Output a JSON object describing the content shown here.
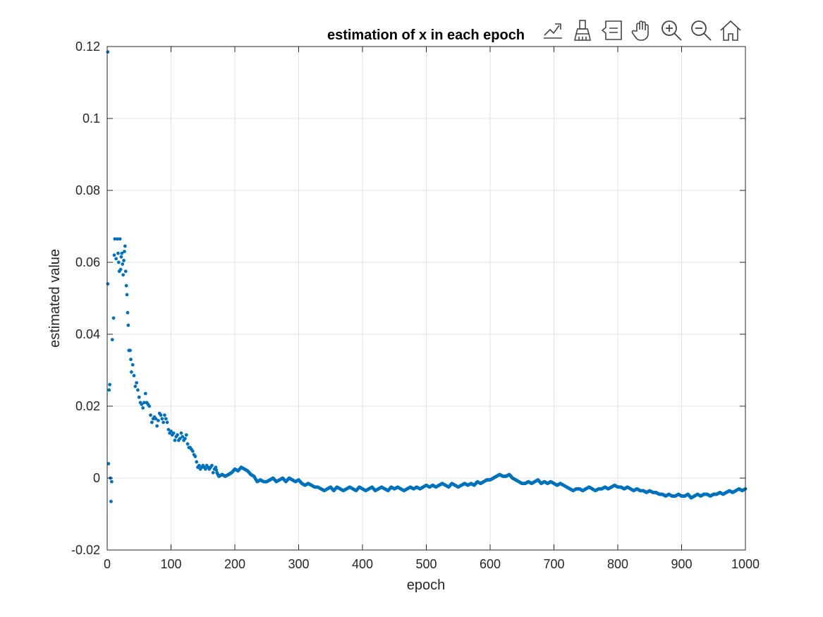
{
  "toolbar": {
    "icons": [
      "export-icon",
      "brush-icon",
      "datatip-icon",
      "pan-icon",
      "zoom-in-icon",
      "zoom-out-icon",
      "home-icon"
    ]
  },
  "colors": {
    "series": "#0072BD",
    "grid": "#e3e3e3",
    "axis": "#262626"
  },
  "chart_data": {
    "type": "scatter",
    "title": "estimation of x in each epoch",
    "xlabel": "epoch",
    "ylabel": "estimated value",
    "xlim": [
      0,
      1000
    ],
    "ylim": [
      -0.02,
      0.12
    ],
    "xticks": [
      0,
      100,
      200,
      300,
      400,
      500,
      600,
      700,
      800,
      900,
      1000
    ],
    "xtick_labels": [
      "0",
      "100",
      "200",
      "300",
      "400",
      "500",
      "600",
      "700",
      "800",
      "900",
      "1000"
    ],
    "yticks": [
      -0.02,
      0,
      0.02,
      0.04,
      0.06,
      0.08,
      0.1,
      0.12
    ],
    "ytick_labels": [
      "-0.02",
      "0",
      "0.02",
      "0.04",
      "0.06",
      "0.08",
      "0.1",
      "0.12"
    ],
    "grid": true,
    "legend": "none",
    "series": [
      {
        "color": "#0072BD",
        "points": [
          [
            1,
            0.1185
          ],
          [
            1,
            0.054
          ],
          [
            2,
            0.004
          ],
          [
            3,
            0.0245
          ],
          [
            4,
            0.026
          ],
          [
            5,
            0.0
          ],
          [
            6,
            -0.0065
          ],
          [
            7,
            -0.001
          ],
          [
            8,
            0.0385
          ],
          [
            10,
            0.0445
          ],
          [
            11,
            0.062
          ],
          [
            12,
            0.0665
          ],
          [
            14,
            0.061
          ],
          [
            16,
            0.0665
          ],
          [
            17,
            0.0625
          ],
          [
            18,
            0.06
          ],
          [
            19,
            0.0575
          ],
          [
            20,
            0.0665
          ],
          [
            21,
            0.058
          ],
          [
            22,
            0.0615
          ],
          [
            23,
            0.0625
          ],
          [
            24,
            0.0595
          ],
          [
            25,
            0.0565
          ],
          [
            26,
            0.0605
          ],
          [
            27,
            0.063
          ],
          [
            28,
            0.0645
          ],
          [
            29,
            0.0575
          ],
          [
            30,
            0.0535
          ],
          [
            31,
            0.051
          ],
          [
            32,
            0.046
          ],
          [
            33,
            0.0425
          ],
          [
            34,
            0.0355
          ],
          [
            36,
            0.0355
          ],
          [
            37,
            0.033
          ],
          [
            38,
            0.0295
          ],
          [
            40,
            0.0315
          ],
          [
            42,
            0.0285
          ],
          [
            44,
            0.0255
          ],
          [
            46,
            0.0265
          ],
          [
            48,
            0.0245
          ],
          [
            50,
            0.0225
          ],
          [
            52,
            0.021
          ],
          [
            54,
            0.0205
          ],
          [
            56,
            0.0195
          ],
          [
            58,
            0.021
          ],
          [
            60,
            0.0235
          ],
          [
            62,
            0.021
          ],
          [
            64,
            0.0205
          ],
          [
            66,
            0.02
          ],
          [
            68,
            0.0175
          ],
          [
            70,
            0.0155
          ],
          [
            72,
            0.0165
          ],
          [
            74,
            0.017
          ],
          [
            76,
            0.0165
          ],
          [
            78,
            0.0145
          ],
          [
            80,
            0.016
          ],
          [
            82,
            0.018
          ],
          [
            84,
            0.0175
          ],
          [
            86,
            0.0165
          ],
          [
            88,
            0.0155
          ],
          [
            90,
            0.0175
          ],
          [
            92,
            0.0165
          ],
          [
            94,
            0.0155
          ],
          [
            96,
            0.0135
          ],
          [
            98,
            0.0125
          ],
          [
            100,
            0.013
          ],
          [
            102,
            0.012
          ],
          [
            104,
            0.0125
          ],
          [
            106,
            0.0105
          ],
          [
            108,
            0.0115
          ],
          [
            110,
            0.012
          ],
          [
            112,
            0.0105
          ],
          [
            114,
            0.011
          ],
          [
            116,
            0.0125
          ],
          [
            118,
            0.0115
          ],
          [
            120,
            0.0105
          ],
          [
            122,
            0.011
          ],
          [
            124,
            0.012
          ],
          [
            126,
            0.0095
          ],
          [
            128,
            0.0085
          ],
          [
            130,
            0.0085
          ],
          [
            132,
            0.008
          ],
          [
            134,
            0.0075
          ],
          [
            136,
            0.0065
          ],
          [
            138,
            0.006
          ],
          [
            140,
            0.0045
          ],
          [
            142,
            0.003
          ],
          [
            144,
            0.0035
          ],
          [
            146,
            0.0025
          ],
          [
            148,
            0.003
          ],
          [
            150,
            0.0035
          ],
          [
            152,
            0.003
          ],
          [
            154,
            0.0025
          ],
          [
            156,
            0.0035
          ],
          [
            158,
            0.003
          ],
          [
            160,
            0.0025
          ],
          [
            162,
            0.003
          ],
          [
            164,
            0.0035
          ],
          [
            166,
            0.0015
          ],
          [
            168,
            0.0025
          ],
          [
            170,
            0.003
          ],
          [
            172,
            0.0015
          ],
          [
            175,
            0.0005
          ],
          [
            180,
            0.001
          ],
          [
            185,
            0.0005
          ],
          [
            190,
            0.001
          ],
          [
            195,
            0.0015
          ],
          [
            200,
            0.0025
          ],
          [
            205,
            0.002
          ],
          [
            210,
            0.003
          ],
          [
            215,
            0.0025
          ],
          [
            220,
            0.002
          ],
          [
            225,
            0.001
          ],
          [
            230,
            0.0005
          ],
          [
            235,
            -0.001
          ],
          [
            240,
            -0.0005
          ],
          [
            245,
            -0.001
          ],
          [
            250,
            -0.001
          ],
          [
            255,
            -0.0005
          ],
          [
            260,
            0.0
          ],
          [
            265,
            -0.001
          ],
          [
            270,
            -0.0005
          ],
          [
            275,
            0.0
          ],
          [
            280,
            -0.001
          ],
          [
            285,
            0.0
          ],
          [
            290,
            -0.0005
          ],
          [
            295,
            -0.001
          ],
          [
            300,
            -0.0005
          ],
          [
            305,
            -0.0015
          ],
          [
            310,
            -0.002
          ],
          [
            315,
            -0.0015
          ],
          [
            320,
            -0.002
          ],
          [
            325,
            -0.0025
          ],
          [
            330,
            -0.0025
          ],
          [
            335,
            -0.003
          ],
          [
            340,
            -0.0035
          ],
          [
            345,
            -0.003
          ],
          [
            350,
            -0.0025
          ],
          [
            355,
            -0.0035
          ],
          [
            360,
            -0.0025
          ],
          [
            365,
            -0.003
          ],
          [
            370,
            -0.0035
          ],
          [
            375,
            -0.003
          ],
          [
            380,
            -0.0025
          ],
          [
            385,
            -0.003
          ],
          [
            390,
            -0.0035
          ],
          [
            395,
            -0.0025
          ],
          [
            400,
            -0.003
          ],
          [
            405,
            -0.0035
          ],
          [
            410,
            -0.003
          ],
          [
            415,
            -0.0025
          ],
          [
            420,
            -0.0035
          ],
          [
            425,
            -0.003
          ],
          [
            430,
            -0.0025
          ],
          [
            435,
            -0.003
          ],
          [
            440,
            -0.0035
          ],
          [
            445,
            -0.0025
          ],
          [
            450,
            -0.003
          ],
          [
            455,
            -0.0025
          ],
          [
            460,
            -0.003
          ],
          [
            465,
            -0.0035
          ],
          [
            470,
            -0.003
          ],
          [
            475,
            -0.0025
          ],
          [
            480,
            -0.003
          ],
          [
            485,
            -0.0025
          ],
          [
            490,
            -0.003
          ],
          [
            495,
            -0.0025
          ],
          [
            500,
            -0.002
          ],
          [
            505,
            -0.0025
          ],
          [
            510,
            -0.002
          ],
          [
            515,
            -0.0025
          ],
          [
            520,
            -0.002
          ],
          [
            525,
            -0.0015
          ],
          [
            530,
            -0.002
          ],
          [
            535,
            -0.0025
          ],
          [
            540,
            -0.0015
          ],
          [
            545,
            -0.002
          ],
          [
            550,
            -0.0025
          ],
          [
            555,
            -0.002
          ],
          [
            560,
            -0.0015
          ],
          [
            565,
            -0.002
          ],
          [
            570,
            -0.0015
          ],
          [
            575,
            -0.002
          ],
          [
            580,
            -0.001
          ],
          [
            585,
            -0.0015
          ],
          [
            590,
            -0.001
          ],
          [
            595,
            -0.0005
          ],
          [
            600,
            -0.0005
          ],
          [
            605,
            0.0
          ],
          [
            610,
            0.0005
          ],
          [
            615,
            0.001
          ],
          [
            620,
            0.0005
          ],
          [
            625,
            0.0005
          ],
          [
            630,
            0.001
          ],
          [
            635,
            0.0
          ],
          [
            640,
            -0.0005
          ],
          [
            645,
            -0.001
          ],
          [
            650,
            -0.0015
          ],
          [
            655,
            -0.0015
          ],
          [
            660,
            -0.001
          ],
          [
            665,
            -0.0015
          ],
          [
            670,
            -0.001
          ],
          [
            675,
            -0.0005
          ],
          [
            680,
            -0.0015
          ],
          [
            685,
            -0.001
          ],
          [
            690,
            -0.0015
          ],
          [
            695,
            -0.001
          ],
          [
            700,
            -0.0015
          ],
          [
            705,
            -0.002
          ],
          [
            710,
            -0.0015
          ],
          [
            715,
            -0.002
          ],
          [
            720,
            -0.0025
          ],
          [
            725,
            -0.003
          ],
          [
            730,
            -0.0035
          ],
          [
            735,
            -0.003
          ],
          [
            740,
            -0.003
          ],
          [
            745,
            -0.0035
          ],
          [
            750,
            -0.003
          ],
          [
            755,
            -0.0025
          ],
          [
            760,
            -0.003
          ],
          [
            765,
            -0.0035
          ],
          [
            770,
            -0.003
          ],
          [
            775,
            -0.003
          ],
          [
            780,
            -0.0025
          ],
          [
            785,
            -0.003
          ],
          [
            790,
            -0.0025
          ],
          [
            795,
            -0.002
          ],
          [
            800,
            -0.0025
          ],
          [
            805,
            -0.0025
          ],
          [
            810,
            -0.003
          ],
          [
            815,
            -0.0025
          ],
          [
            820,
            -0.003
          ],
          [
            825,
            -0.0035
          ],
          [
            830,
            -0.003
          ],
          [
            835,
            -0.0035
          ],
          [
            840,
            -0.0035
          ],
          [
            845,
            -0.004
          ],
          [
            850,
            -0.0035
          ],
          [
            855,
            -0.004
          ],
          [
            860,
            -0.004
          ],
          [
            865,
            -0.0045
          ],
          [
            870,
            -0.0045
          ],
          [
            875,
            -0.005
          ],
          [
            880,
            -0.0045
          ],
          [
            885,
            -0.005
          ],
          [
            890,
            -0.005
          ],
          [
            895,
            -0.0045
          ],
          [
            900,
            -0.005
          ],
          [
            905,
            -0.005
          ],
          [
            910,
            -0.0045
          ],
          [
            915,
            -0.0055
          ],
          [
            920,
            -0.005
          ],
          [
            925,
            -0.0045
          ],
          [
            930,
            -0.005
          ],
          [
            935,
            -0.0045
          ],
          [
            940,
            -0.0045
          ],
          [
            945,
            -0.005
          ],
          [
            950,
            -0.0045
          ],
          [
            955,
            -0.0045
          ],
          [
            960,
            -0.004
          ],
          [
            965,
            -0.0045
          ],
          [
            970,
            -0.004
          ],
          [
            975,
            -0.0035
          ],
          [
            980,
            -0.004
          ],
          [
            985,
            -0.0035
          ],
          [
            990,
            -0.003
          ],
          [
            995,
            -0.0035
          ],
          [
            1000,
            -0.003
          ]
        ]
      }
    ]
  }
}
